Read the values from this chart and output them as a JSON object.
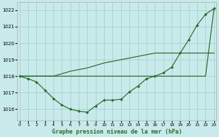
{
  "title": "Graphe pression niveau de la mer (hPa)",
  "bg_color": "#c8eaea",
  "grid_color": "#a8d4d4",
  "line_color": "#2d6b2d",
  "x_ticks": [
    0,
    1,
    2,
    3,
    4,
    5,
    6,
    7,
    8,
    9,
    10,
    11,
    12,
    13,
    14,
    15,
    16,
    17,
    18,
    19,
    20,
    21,
    22,
    23
  ],
  "y_ticks": [
    1016,
    1017,
    1018,
    1019,
    1020,
    1021,
    1022
  ],
  "ylim": [
    1015.3,
    1022.5
  ],
  "xlim": [
    -0.3,
    23.3
  ],
  "series": [
    [
      1018.0,
      1017.85,
      1017.65,
      1017.15,
      1016.65,
      1016.25,
      1016.0,
      1015.88,
      1015.82,
      1016.2,
      1016.55,
      1016.55,
      1016.6,
      1017.05,
      1017.4,
      1017.85,
      1018.0,
      1018.2,
      1018.55,
      1019.4,
      1020.2,
      1021.1,
      1021.75,
      1022.1
    ],
    [
      1018.0,
      1018.0,
      1018.0,
      1018.0,
      1018.0,
      1018.0,
      1018.0,
      1018.0,
      1018.0,
      1018.0,
      1018.0,
      1018.0,
      1018.0,
      1018.0,
      1018.0,
      1018.0,
      1018.0,
      1018.0,
      1018.0,
      1018.0,
      1018.0,
      1018.0,
      1018.0,
      1022.1
    ],
    [
      1018.0,
      1018.0,
      1018.0,
      1018.0,
      1018.0,
      1018.15,
      1018.3,
      1018.4,
      1018.5,
      1018.65,
      1018.8,
      1018.9,
      1019.0,
      1019.1,
      1019.2,
      1019.3,
      1019.4,
      1019.4,
      1019.4,
      1019.4,
      1019.4,
      1019.4,
      1019.4,
      1019.4
    ]
  ]
}
